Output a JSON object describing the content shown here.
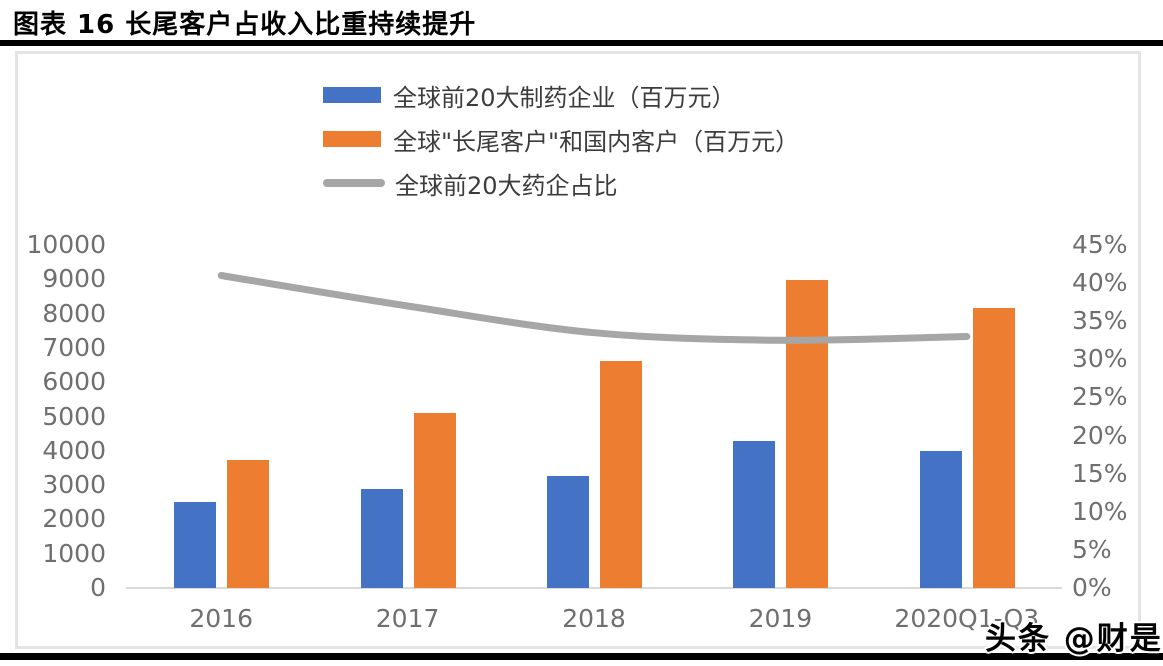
{
  "page": {
    "title": "图表  16 长尾客户占收入比重持续提升",
    "watermark": "头条 @财是"
  },
  "chart_data": {
    "type": "bar",
    "subtype": "grouped bars with secondary-axis line (combo)",
    "title": "图表 16 长尾客户占收入比重持续提升",
    "categories": [
      "2016",
      "2017",
      "2018",
      "2019",
      "2020Q1-Q3"
    ],
    "series": [
      {
        "name": "全球前20大制药企业（百万元）",
        "kind": "bar",
        "axis": "left",
        "color": "#4472C4",
        "values": [
          2520,
          2890,
          3270,
          4290,
          3990
        ]
      },
      {
        "name": "全球\"长尾客户\"和国内客户（百万元）",
        "kind": "bar",
        "axis": "left",
        "color": "#ED7D31",
        "values": [
          3730,
          5110,
          6630,
          8990,
          8170
        ]
      },
      {
        "name": "全球前20大药企占比",
        "kind": "line",
        "axis": "right",
        "color": "#A6A6A6",
        "unit": "%",
        "values": [
          41,
          37,
          33.5,
          32.5,
          33
        ]
      }
    ],
    "left_axis": {
      "min": 0,
      "max": 10000,
      "step": 1000,
      "tick_labels": [
        "10000",
        "9000",
        "8000",
        "7000",
        "6000",
        "5000",
        "4000",
        "3000",
        "2000",
        "1000",
        "0"
      ]
    },
    "right_axis": {
      "min": 0,
      "max": 45,
      "step": 5,
      "unit": "%",
      "tick_labels": [
        "45%",
        "40%",
        "35%",
        "30%",
        "25%",
        "20%",
        "15%",
        "10%",
        "5%",
        "0%"
      ]
    },
    "legend_position": "top-center",
    "grid": false,
    "xlabel": "",
    "ylabel": ""
  },
  "colors": {
    "bar_blue": "#4472C4",
    "bar_orange": "#ED7D31",
    "line_gray": "#A6A6A6",
    "axis_text": "#6f6f6f",
    "legend_text": "#3c3c3c",
    "axis_line": "#d9d9d9",
    "panel_border": "#e4e4e4",
    "rule_black": "#000000"
  }
}
